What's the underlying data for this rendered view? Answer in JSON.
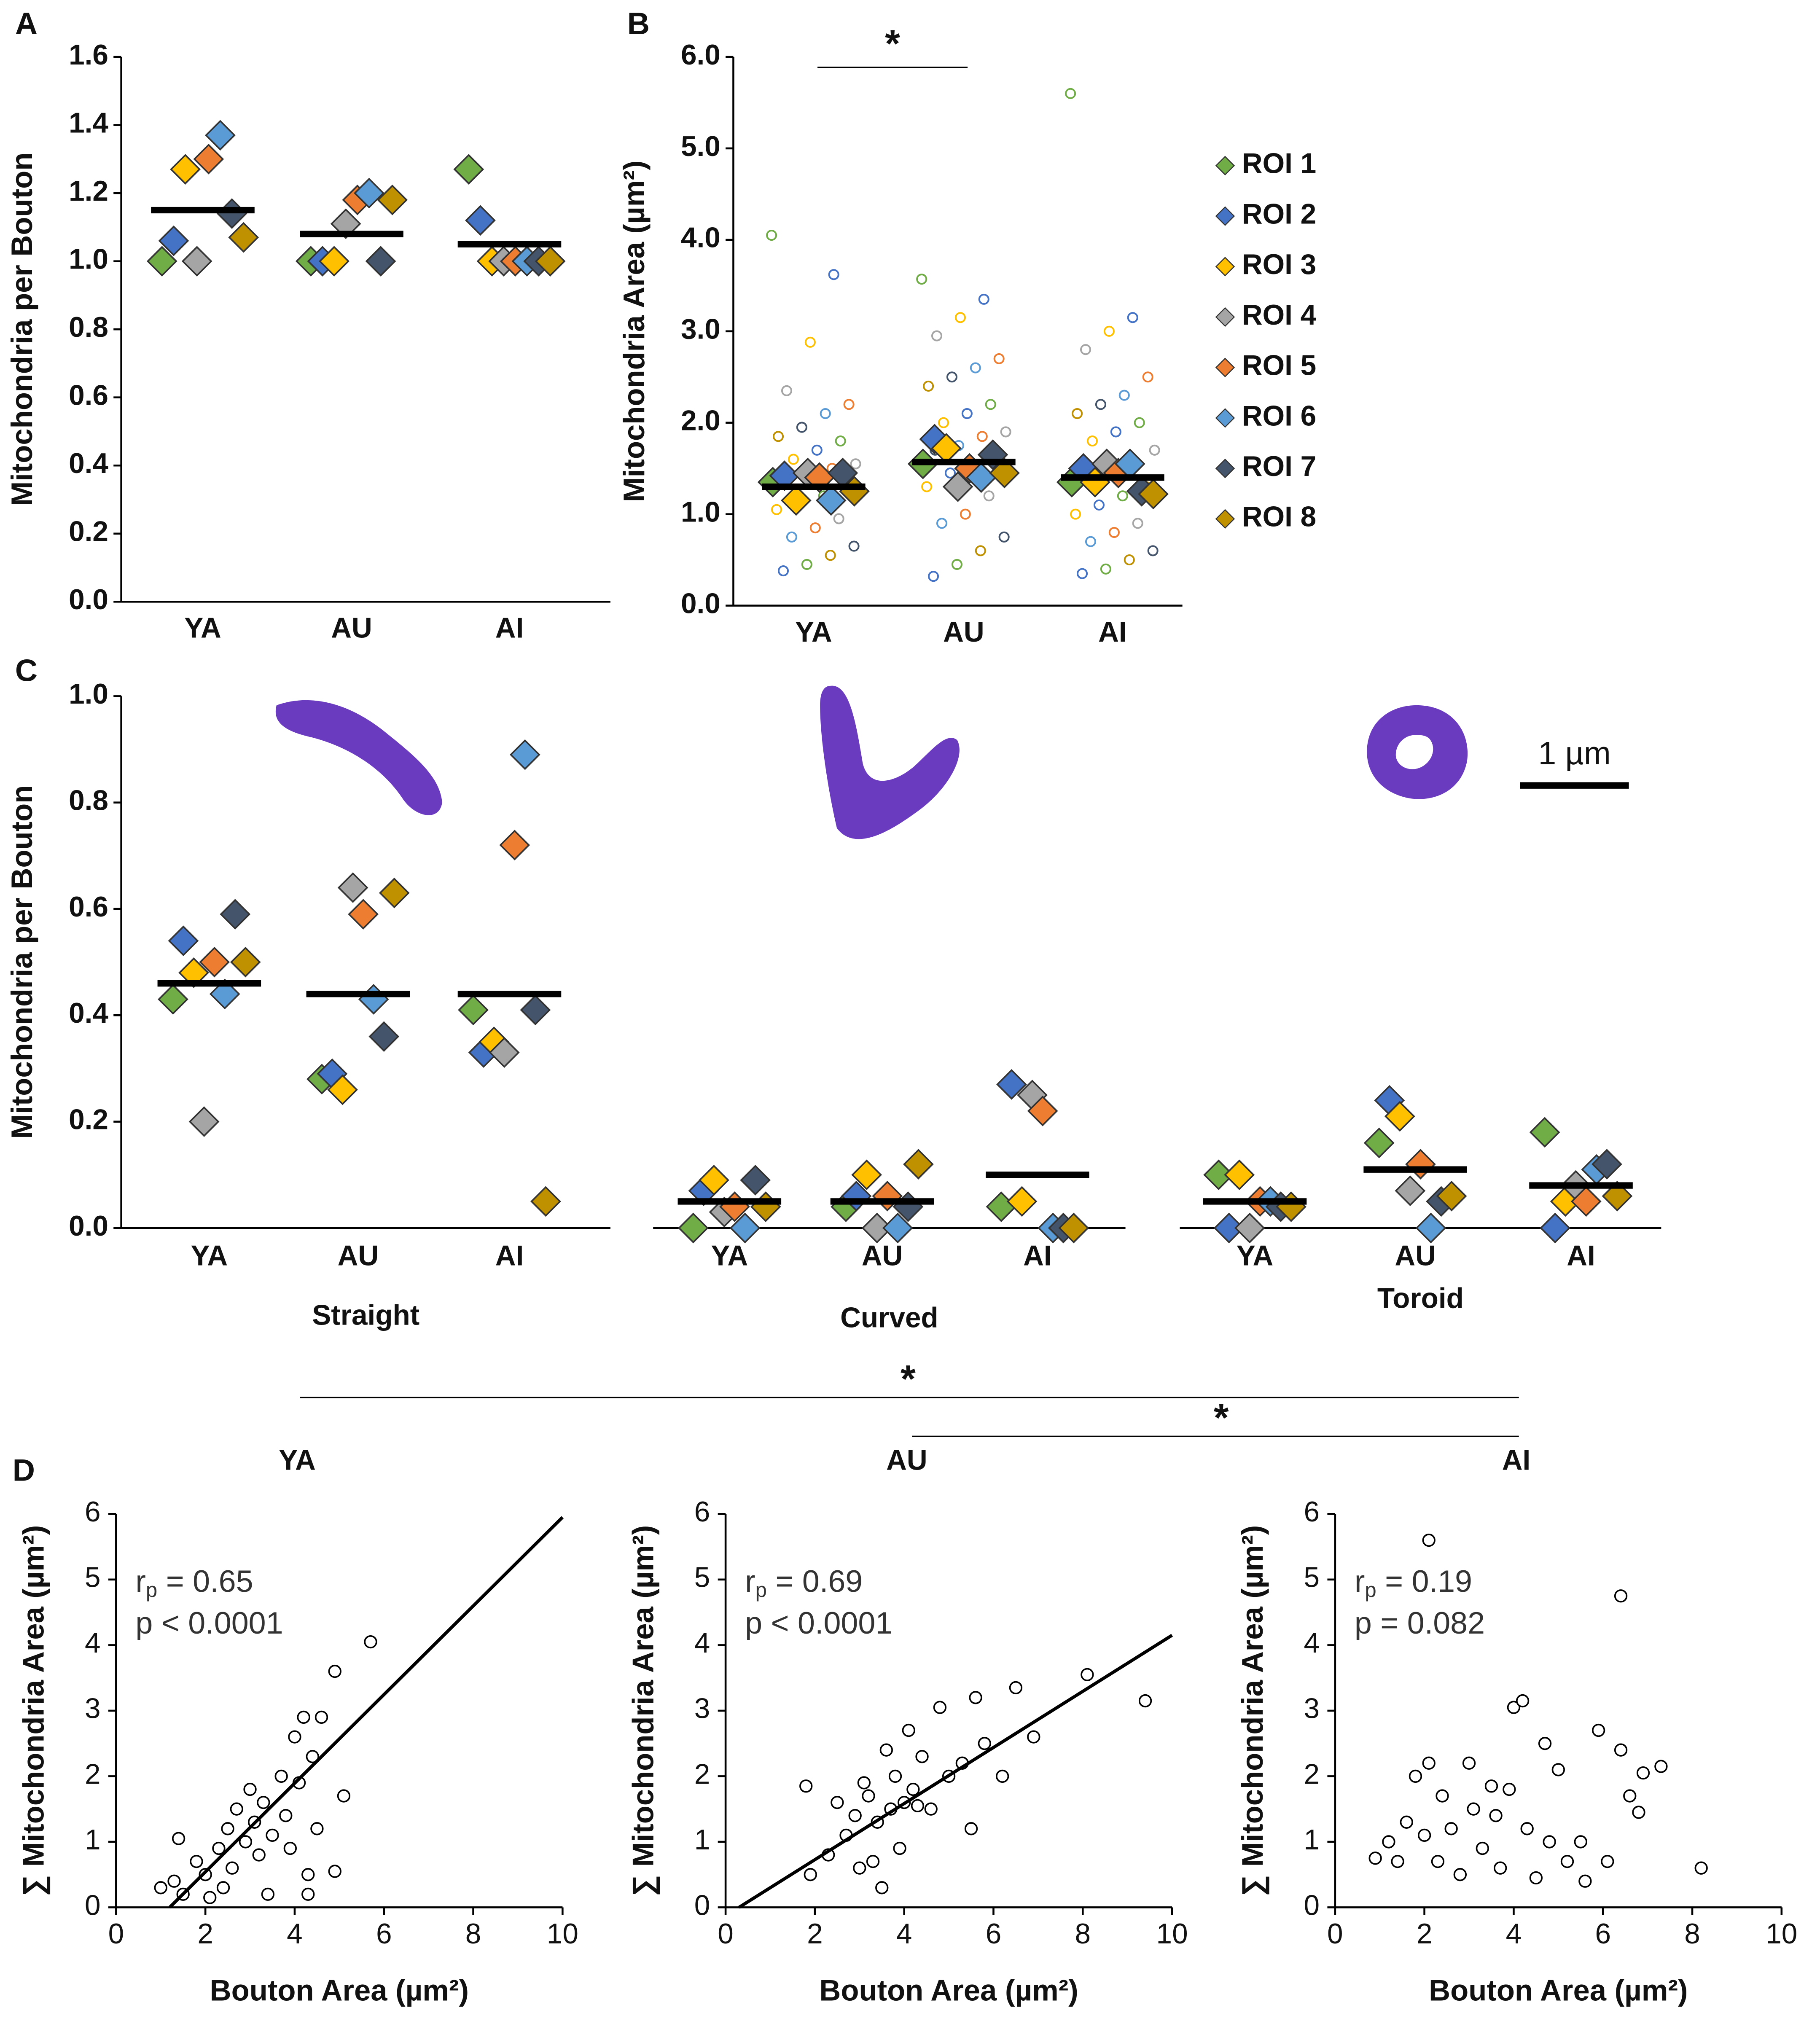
{
  "chart_data": [
    {
      "type": "dot",
      "panel": "A",
      "ylabel": "Mitochondria per Bouton",
      "categories": [
        "YA",
        "AU",
        "AI"
      ],
      "series": [
        {
          "name": "ROI 1",
          "color": "#70ad47",
          "values": [
            1.0,
            1.0,
            1.27
          ]
        },
        {
          "name": "ROI 2",
          "color": "#4472c4",
          "values": [
            1.06,
            1.0,
            1.12
          ]
        },
        {
          "name": "ROI 3",
          "color": "#ffc000",
          "values": [
            1.27,
            1.0,
            1.0
          ]
        },
        {
          "name": "ROI 4",
          "color": "#a5a5a5",
          "values": [
            1.0,
            1.11,
            1.0
          ]
        },
        {
          "name": "ROI 5",
          "color": "#ed7d31",
          "values": [
            1.3,
            1.18,
            1.0
          ]
        },
        {
          "name": "ROI 6",
          "color": "#5b9bd5",
          "values": [
            1.37,
            1.2,
            1.0
          ]
        },
        {
          "name": "ROI 7",
          "color": "#44546a",
          "values": [
            1.14,
            1.0,
            1.0
          ]
        },
        {
          "name": "ROI 8",
          "color": "#bf9000",
          "values": [
            1.07,
            1.18,
            1.0
          ]
        }
      ],
      "means": [
        1.15,
        1.08,
        1.05
      ],
      "ylim": [
        0,
        1.6
      ],
      "yticks": [
        {
          "value": 0,
          "label": "0.0"
        },
        {
          "value": 0.2,
          "label": "0.2"
        },
        {
          "value": 0.4,
          "label": "0.4"
        },
        {
          "value": 0.6,
          "label": "0.6"
        },
        {
          "value": 0.8,
          "label": "0.8"
        },
        {
          "value": 1,
          "label": "1.0"
        },
        {
          "value": 1.2,
          "label": "1.2"
        },
        {
          "value": 1.4,
          "label": "1.4"
        },
        {
          "value": 1.6,
          "label": "1.6"
        }
      ]
    },
    {
      "type": "dot",
      "panel": "B",
      "ylabel": "Mitochondria Area (µm²)",
      "categories": [
        "YA",
        "AU",
        "AI"
      ],
      "series": [
        {
          "name": "ROI 1",
          "color": "#70ad47",
          "values": [
            1.35,
            1.55,
            1.35
          ]
        },
        {
          "name": "ROI 2",
          "color": "#4472c4",
          "values": [
            1.42,
            1.82,
            1.5
          ]
        },
        {
          "name": "ROI 3",
          "color": "#ffc000",
          "values": [
            1.15,
            1.72,
            1.35
          ]
        },
        {
          "name": "ROI 4",
          "color": "#a5a5a5",
          "values": [
            1.45,
            1.3,
            1.55
          ]
        },
        {
          "name": "ROI 5",
          "color": "#ed7d31",
          "values": [
            1.4,
            1.5,
            1.45
          ]
        },
        {
          "name": "ROI 6",
          "color": "#5b9bd5",
          "values": [
            1.15,
            1.4,
            1.55
          ]
        },
        {
          "name": "ROI 7",
          "color": "#44546a",
          "values": [
            1.45,
            1.65,
            1.25
          ]
        },
        {
          "name": "ROI 8",
          "color": "#bf9000",
          "values": [
            1.25,
            1.45,
            1.22
          ]
        }
      ],
      "means": [
        1.3,
        1.57,
        1.4
      ],
      "raw_values": [
        [
          4.05,
          3.62,
          2.88,
          2.35,
          2.2,
          2.1,
          1.95,
          1.85,
          1.8,
          1.7,
          1.6,
          1.55,
          1.5,
          1.45,
          1.35,
          1.3,
          1.2,
          1.15,
          1.05,
          0.95,
          0.85,
          0.75,
          0.65,
          0.55,
          0.45,
          0.38
        ],
        [
          3.57,
          3.35,
          3.15,
          2.95,
          2.7,
          2.6,
          2.5,
          2.4,
          2.2,
          2.1,
          2.0,
          1.9,
          1.85,
          1.75,
          1.7,
          1.6,
          1.5,
          1.45,
          1.3,
          1.2,
          1.0,
          0.9,
          0.75,
          0.6,
          0.45,
          0.32
        ],
        [
          5.6,
          3.15,
          3.0,
          2.8,
          2.5,
          2.3,
          2.2,
          2.1,
          2.0,
          1.9,
          1.8,
          1.7,
          1.6,
          1.5,
          1.4,
          1.3,
          1.2,
          1.1,
          1.0,
          0.9,
          0.8,
          0.7,
          0.6,
          0.5,
          0.4,
          0.35
        ]
      ],
      "significance": [
        "*"
      ],
      "legend": "right",
      "ylim": [
        0,
        6
      ],
      "yticks": [
        {
          "value": 0,
          "label": "0.0"
        },
        {
          "value": 1,
          "label": "1.0"
        },
        {
          "value": 2,
          "label": "2.0"
        },
        {
          "value": 3,
          "label": "3.0"
        },
        {
          "value": 4,
          "label": "4.0"
        },
        {
          "value": 5,
          "label": "5.0"
        },
        {
          "value": 6,
          "label": "6.0"
        }
      ]
    },
    {
      "type": "dot-groups",
      "panel": "C",
      "ylabel": "Mitochondria per Bouton",
      "groups": [
        {
          "name": "Straight",
          "categories": [
            "YA",
            "AU",
            "AI"
          ],
          "values": [
            [
              0.43,
              0.54,
              0.48,
              0.2,
              0.5,
              0.44,
              0.59,
              0.5
            ],
            [
              0.28,
              0.29,
              0.26,
              0.64,
              0.59,
              0.43,
              0.36,
              0.63
            ],
            [
              0.41,
              0.33,
              0.35,
              0.33,
              0.72,
              0.89,
              0.41,
              0.05
            ]
          ],
          "means": [
            0.46,
            0.44,
            0.44
          ]
        },
        {
          "name": "Curved",
          "categories": [
            "YA",
            "AU",
            "AI"
          ],
          "values": [
            [
              0.0,
              0.07,
              0.09,
              0.03,
              0.04,
              0.0,
              0.09,
              0.04
            ],
            [
              0.04,
              0.06,
              0.1,
              0.0,
              0.06,
              0.0,
              0.04,
              0.12
            ],
            [
              0.04,
              0.27,
              0.05,
              0.25,
              0.22,
              0.0,
              0.0,
              0.0
            ]
          ],
          "means": [
            0.05,
            0.05,
            0.1
          ]
        },
        {
          "name": "Toroid",
          "categories": [
            "YA",
            "AU",
            "AI"
          ],
          "values": [
            [
              0.1,
              0.0,
              0.1,
              0.0,
              0.05,
              0.05,
              0.04,
              0.04
            ],
            [
              0.16,
              0.24,
              0.21,
              0.07,
              0.12,
              0.0,
              0.05,
              0.06
            ],
            [
              0.18,
              0.0,
              0.05,
              0.08,
              0.05,
              0.11,
              0.12,
              0.06
            ]
          ],
          "means": [
            0.05,
            0.11,
            0.08
          ]
        }
      ],
      "significance": [
        "*",
        "*"
      ],
      "scale_bar": "1 µm",
      "ylim": [
        0,
        1
      ],
      "yticks": [
        {
          "value": 0,
          "label": "0.0"
        },
        {
          "value": 0.2,
          "label": "0.2"
        },
        {
          "value": 0.4,
          "label": "0.4"
        },
        {
          "value": 0.6,
          "label": "0.6"
        },
        {
          "value": 0.8,
          "label": "0.8"
        },
        {
          "value": 1,
          "label": "1.0"
        }
      ]
    },
    {
      "type": "scatter",
      "panel": "D",
      "title": "YA",
      "xlabel": "Bouton Area (µm²)",
      "ylabel": "∑ Mitochondria Area (µm²)",
      "x": [
        1.0,
        1.3,
        1.5,
        1.8,
        2.0,
        2.1,
        2.3,
        2.5,
        2.6,
        2.7,
        2.9,
        3.0,
        3.1,
        3.2,
        3.3,
        3.4,
        3.5,
        3.7,
        3.8,
        3.9,
        4.0,
        4.1,
        4.2,
        4.3,
        4.4,
        4.5,
        4.6,
        4.9,
        4.9,
        5.1,
        5.7,
        1.4,
        2.4,
        4.3
      ],
      "y": [
        0.3,
        0.4,
        0.2,
        0.7,
        0.5,
        0.15,
        0.9,
        1.2,
        0.6,
        1.5,
        1.0,
        1.8,
        1.3,
        0.8,
        1.6,
        0.2,
        1.1,
        2.0,
        1.4,
        0.9,
        2.6,
        1.9,
        2.9,
        0.5,
        2.3,
        1.2,
        2.9,
        3.6,
        0.55,
        1.7,
        4.05,
        1.05,
        0.3,
        0.2
      ],
      "fit_x": [
        1.2,
        10
      ],
      "fit_y": [
        0,
        5.95
      ],
      "r_label": "r",
      "r_sub": "p",
      "r_value": " = 0.65",
      "p_text": "p < 0.0001",
      "xlim": [
        0,
        10
      ],
      "ylim": [
        0,
        6
      ],
      "xticks": [
        0,
        2,
        4,
        6,
        8,
        10
      ],
      "yticks": [
        0,
        1,
        2,
        3,
        4,
        5,
        6
      ]
    },
    {
      "type": "scatter",
      "title": "AU",
      "xlabel": "Bouton Area (µm²)",
      "ylabel": "∑ Mitochondria Area (µm²)",
      "x": [
        1.8,
        1.9,
        2.3,
        2.5,
        2.7,
        2.9,
        3.0,
        3.1,
        3.2,
        3.4,
        3.5,
        3.6,
        3.7,
        3.8,
        3.9,
        4.0,
        4.1,
        4.2,
        4.4,
        4.6,
        4.8,
        5.0,
        5.3,
        5.5,
        5.6,
        5.8,
        6.2,
        6.5,
        6.9,
        8.1,
        9.4,
        4.3,
        3.3
      ],
      "y": [
        1.85,
        0.5,
        0.8,
        1.6,
        1.1,
        1.4,
        0.6,
        1.9,
        1.7,
        1.3,
        0.3,
        2.4,
        1.5,
        2.0,
        0.9,
        1.6,
        2.7,
        1.8,
        2.3,
        1.5,
        3.05,
        2.0,
        2.2,
        1.2,
        3.2,
        2.5,
        2.0,
        3.35,
        2.6,
        3.55,
        3.15,
        1.55,
        0.7
      ],
      "fit_x": [
        0.3,
        10
      ],
      "fit_y": [
        0,
        4.15
      ],
      "r_label": "r",
      "r_sub": "p",
      "r_value": " = 0.69",
      "p_text": "p < 0.0001",
      "xlim": [
        0,
        10
      ],
      "ylim": [
        0,
        6
      ],
      "xticks": [
        0,
        2,
        4,
        6,
        8,
        10
      ],
      "yticks": [
        0,
        1,
        2,
        3,
        4,
        5,
        6
      ]
    },
    {
      "type": "scatter",
      "title": "AI",
      "xlabel": "Bouton Area (µm²)",
      "ylabel": "∑ Mitochondria Area (µm²)",
      "x": [
        0.9,
        1.2,
        1.4,
        1.6,
        1.8,
        2.0,
        2.1,
        2.1,
        2.3,
        2.4,
        2.6,
        2.8,
        3.0,
        3.1,
        3.3,
        3.5,
        3.6,
        3.7,
        3.9,
        4.0,
        4.2,
        4.3,
        4.5,
        4.7,
        4.8,
        5.0,
        5.2,
        5.5,
        5.6,
        5.9,
        6.1,
        6.4,
        6.4,
        6.6,
        6.8,
        6.9,
        7.3,
        8.2
      ],
      "y": [
        0.75,
        1.0,
        0.7,
        1.3,
        2.0,
        1.1,
        2.2,
        5.6,
        0.7,
        1.7,
        1.2,
        0.5,
        2.2,
        1.5,
        0.9,
        1.85,
        1.4,
        0.6,
        1.8,
        3.05,
        3.15,
        1.2,
        0.45,
        2.5,
        1.0,
        2.1,
        0.7,
        1.0,
        0.4,
        2.7,
        0.7,
        2.4,
        4.75,
        1.7,
        1.45,
        2.05,
        2.15,
        0.6
      ],
      "r_label": "r",
      "r_sub": "p",
      "r_value": " = 0.19",
      "p_text": "p = 0.082",
      "xlim": [
        0,
        10
      ],
      "ylim": [
        0,
        6
      ],
      "xticks": [
        0,
        2,
        4,
        6,
        8,
        10
      ],
      "yticks": [
        0,
        1,
        2,
        3,
        4,
        5,
        6
      ]
    }
  ]
}
